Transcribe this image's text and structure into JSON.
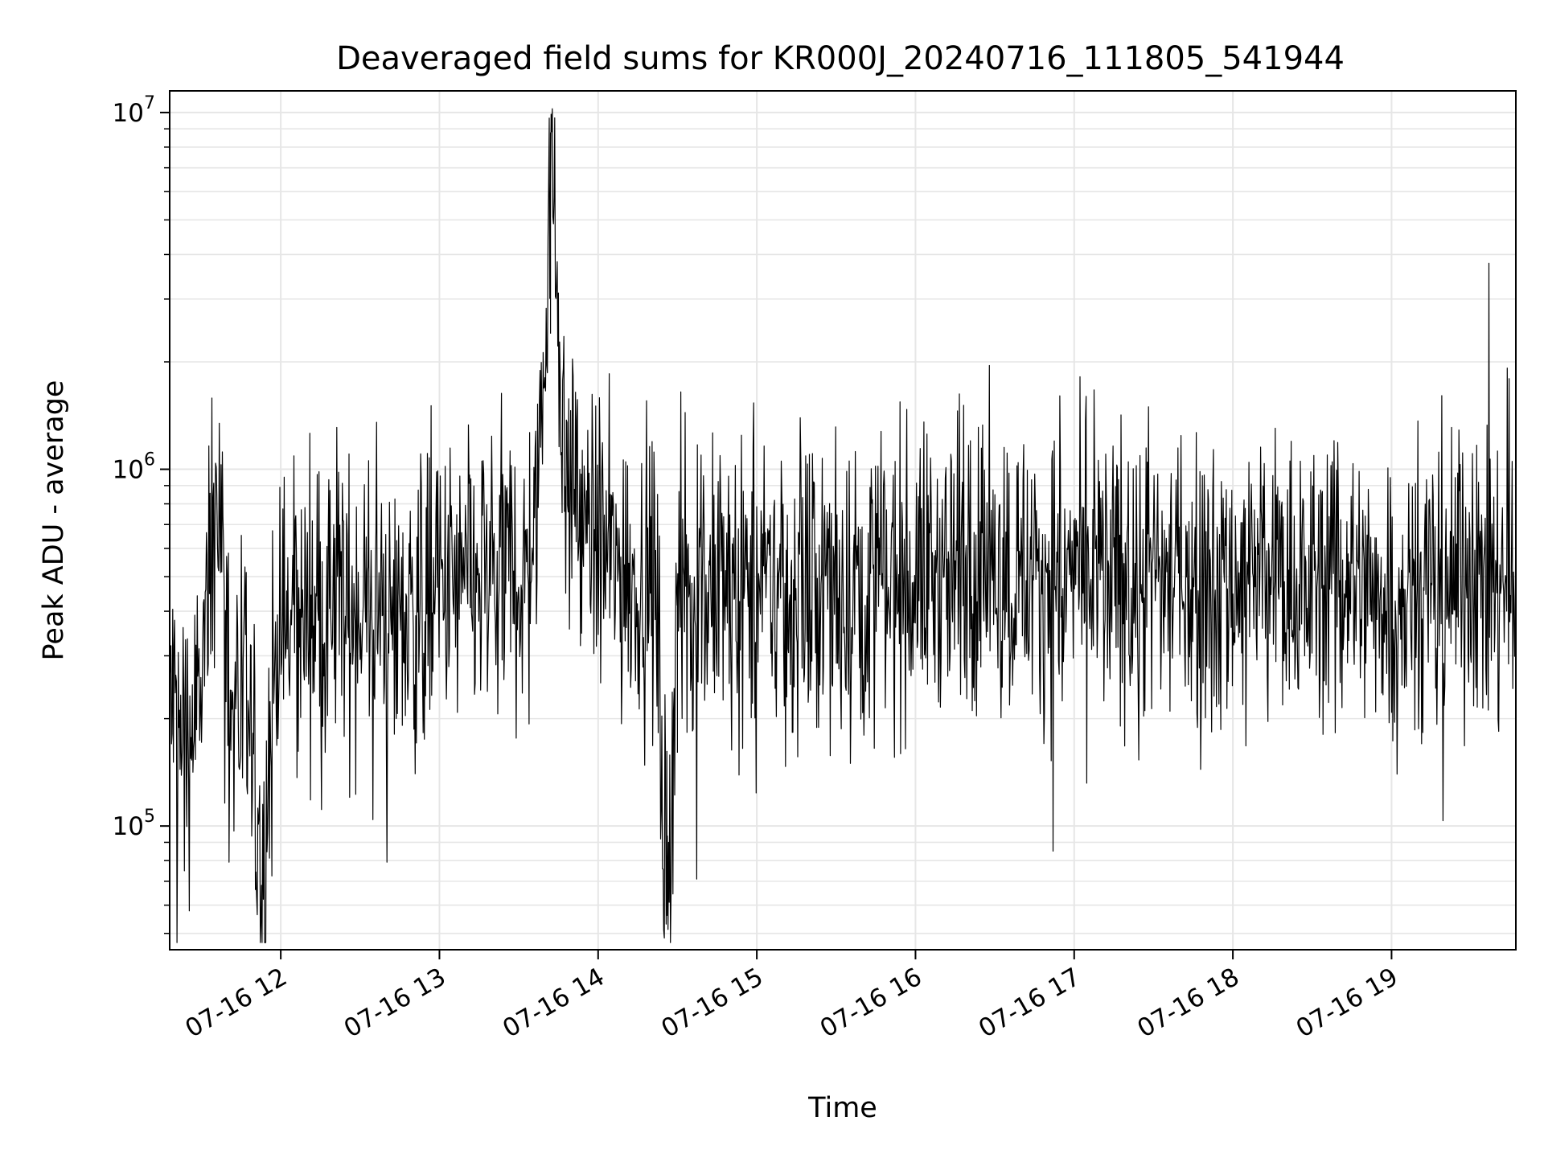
{
  "chart_data": {
    "type": "line",
    "title": "Deaveraged field sums for KR000J_20240716_111805_541944",
    "xlabel": "Time",
    "ylabel": "Peak ADU - average",
    "yscale": "log",
    "ylim": [
      45000,
      11500000
    ],
    "xlim": [
      "2024-07-16 11:18",
      "2024-07-16 19:47"
    ],
    "grid": true,
    "line_color": "#000000",
    "grid_color": "#e6e6e6",
    "x_ticks": [
      {
        "value": "2024-07-16 12:00",
        "label": "07-16 12"
      },
      {
        "value": "2024-07-16 13:00",
        "label": "07-16 13"
      },
      {
        "value": "2024-07-16 14:00",
        "label": "07-16 14"
      },
      {
        "value": "2024-07-16 15:00",
        "label": "07-16 15"
      },
      {
        "value": "2024-07-16 16:00",
        "label": "07-16 16"
      },
      {
        "value": "2024-07-16 17:00",
        "label": "07-16 17"
      },
      {
        "value": "2024-07-16 18:00",
        "label": "07-16 18"
      },
      {
        "value": "2024-07-16 19:00",
        "label": "07-16 19"
      }
    ],
    "y_ticks": [
      {
        "value": 100000,
        "base": "10",
        "exp": "5"
      },
      {
        "value": 1000000,
        "base": "10",
        "exp": "6"
      },
      {
        "value": 10000000,
        "base": "10",
        "exp": "7"
      }
    ],
    "series": [
      {
        "points": [
          [
            "2024-07-16 11:18",
            230000
          ],
          [
            "2024-07-16 11:24",
            160000
          ],
          [
            "2024-07-16 11:30",
            240000
          ],
          [
            "2024-07-16 11:36",
            900000
          ],
          [
            "2024-07-16 11:42",
            220000
          ],
          [
            "2024-07-16 11:48",
            190000
          ],
          [
            "2024-07-16 11:53",
            62000
          ],
          [
            "2024-07-16 11:58",
            320000
          ],
          [
            "2024-07-16 12:06",
            380000
          ],
          [
            "2024-07-16 12:12",
            420000
          ],
          [
            "2024-07-16 12:18",
            350000
          ],
          [
            "2024-07-16 12:24",
            430000
          ],
          [
            "2024-07-16 12:30",
            410000
          ],
          [
            "2024-07-16 12:36",
            400000
          ],
          [
            "2024-07-16 12:42",
            390000
          ],
          [
            "2024-07-16 12:48",
            380000
          ],
          [
            "2024-07-16 12:54",
            420000
          ],
          [
            "2024-07-16 13:00",
            450000
          ],
          [
            "2024-07-16 13:06",
            460000
          ],
          [
            "2024-07-16 13:12",
            470000
          ],
          [
            "2024-07-16 13:18",
            490000
          ],
          [
            "2024-07-16 13:24",
            510000
          ],
          [
            "2024-07-16 13:30",
            530000
          ],
          [
            "2024-07-16 13:36",
            560000
          ],
          [
            "2024-07-16 13:40",
            2400000
          ],
          [
            "2024-07-16 13:42",
            8800000
          ],
          [
            "2024-07-16 13:44",
            4100000
          ],
          [
            "2024-07-16 13:47",
            1100000
          ],
          [
            "2024-07-16 13:52",
            800000
          ],
          [
            "2024-07-16 13:58",
            650000
          ],
          [
            "2024-07-16 14:04",
            560000
          ],
          [
            "2024-07-16 14:10",
            520000
          ],
          [
            "2024-07-16 14:16",
            490000
          ],
          [
            "2024-07-16 14:22",
            470000
          ],
          [
            "2024-07-16 14:26",
            56000
          ],
          [
            "2024-07-16 14:30",
            460000
          ],
          [
            "2024-07-16 14:36",
            460000
          ],
          [
            "2024-07-16 14:42",
            450000
          ],
          [
            "2024-07-16 14:48",
            450000
          ],
          [
            "2024-07-16 14:54",
            460000
          ],
          [
            "2024-07-16 15:00",
            460000
          ],
          [
            "2024-07-16 15:06",
            460000
          ],
          [
            "2024-07-16 15:12",
            450000
          ],
          [
            "2024-07-16 15:18",
            440000
          ],
          [
            "2024-07-16 15:24",
            450000
          ],
          [
            "2024-07-16 15:30",
            460000
          ],
          [
            "2024-07-16 15:36",
            460000
          ],
          [
            "2024-07-16 15:42",
            470000
          ],
          [
            "2024-07-16 15:48",
            480000
          ],
          [
            "2024-07-16 15:54",
            490000
          ],
          [
            "2024-07-16 16:00",
            500000
          ],
          [
            "2024-07-16 16:06",
            510000
          ],
          [
            "2024-07-16 16:12",
            520000
          ],
          [
            "2024-07-16 16:18",
            520000
          ],
          [
            "2024-07-16 16:24",
            530000
          ],
          [
            "2024-07-16 16:30",
            530000
          ],
          [
            "2024-07-16 16:36",
            520000
          ],
          [
            "2024-07-16 16:42",
            510000
          ],
          [
            "2024-07-16 16:48",
            500000
          ],
          [
            "2024-07-16 16:54",
            500000
          ],
          [
            "2024-07-16 17:00",
            500000
          ],
          [
            "2024-07-16 17:06",
            500000
          ],
          [
            "2024-07-16 17:12",
            490000
          ],
          [
            "2024-07-16 17:18",
            480000
          ],
          [
            "2024-07-16 17:24",
            490000
          ],
          [
            "2024-07-16 17:30",
            500000
          ],
          [
            "2024-07-16 17:36",
            500000
          ],
          [
            "2024-07-16 17:42",
            490000
          ],
          [
            "2024-07-16 17:48",
            480000
          ],
          [
            "2024-07-16 17:54",
            490000
          ],
          [
            "2024-07-16 18:00",
            500000
          ],
          [
            "2024-07-16 18:06",
            500000
          ],
          [
            "2024-07-16 18:12",
            490000
          ],
          [
            "2024-07-16 18:18",
            480000
          ],
          [
            "2024-07-16 18:24",
            480000
          ],
          [
            "2024-07-16 18:30",
            480000
          ],
          [
            "2024-07-16 18:36",
            490000
          ],
          [
            "2024-07-16 18:42",
            480000
          ],
          [
            "2024-07-16 18:48",
            470000
          ],
          [
            "2024-07-16 18:54",
            460000
          ],
          [
            "2024-07-16 19:00",
            450000
          ],
          [
            "2024-07-16 19:06",
            460000
          ],
          [
            "2024-07-16 19:12",
            460000
          ],
          [
            "2024-07-16 19:18",
            480000
          ],
          [
            "2024-07-16 19:24",
            520000
          ],
          [
            "2024-07-16 19:30",
            500000
          ],
          [
            "2024-07-16 19:36",
            470000
          ],
          [
            "2024-07-16 19:42",
            480000
          ],
          [
            "2024-07-16 19:47",
            440000
          ]
        ]
      }
    ]
  }
}
